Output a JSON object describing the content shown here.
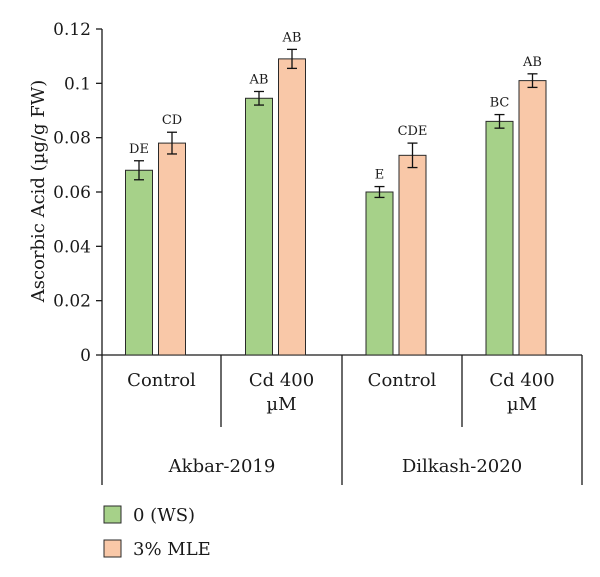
{
  "chart_data": {
    "type": "bar",
    "ylabel": "Ascorbic Acid (µg/g FW)",
    "ylim": [
      0,
      0.12
    ],
    "yticks": [
      "0",
      "0.02",
      "0.04",
      "0.06",
      "0.08",
      "0.1",
      "0.12"
    ],
    "grid": false,
    "legend_position": "bottom-left",
    "groups": [
      {
        "name": "Akbar-2019",
        "categories": [
          {
            "label": [
              "Control"
            ]
          },
          {
            "label": [
              "Cd 400",
              "µM"
            ]
          }
        ]
      },
      {
        "name": "Dilkash-2020",
        "categories": [
          {
            "label": [
              "Control"
            ]
          },
          {
            "label": [
              "Cd 400",
              "µM"
            ]
          }
        ]
      }
    ],
    "series": [
      {
        "name": "0 (WS)",
        "color": "#a6d189",
        "values": [
          0.068,
          0.0945,
          0.06,
          0.086
        ],
        "errors": [
          0.0035,
          0.0025,
          0.002,
          0.0025
        ],
        "labels": [
          "DE",
          "AB",
          "E",
          "BC"
        ]
      },
      {
        "name": "3% MLE",
        "color": "#f9c8a8",
        "values": [
          0.078,
          0.109,
          0.0735,
          0.101
        ],
        "errors": [
          0.004,
          0.0035,
          0.0045,
          0.0025
        ],
        "labels": [
          "CD",
          "AB",
          "CDE",
          "AB"
        ]
      }
    ]
  }
}
